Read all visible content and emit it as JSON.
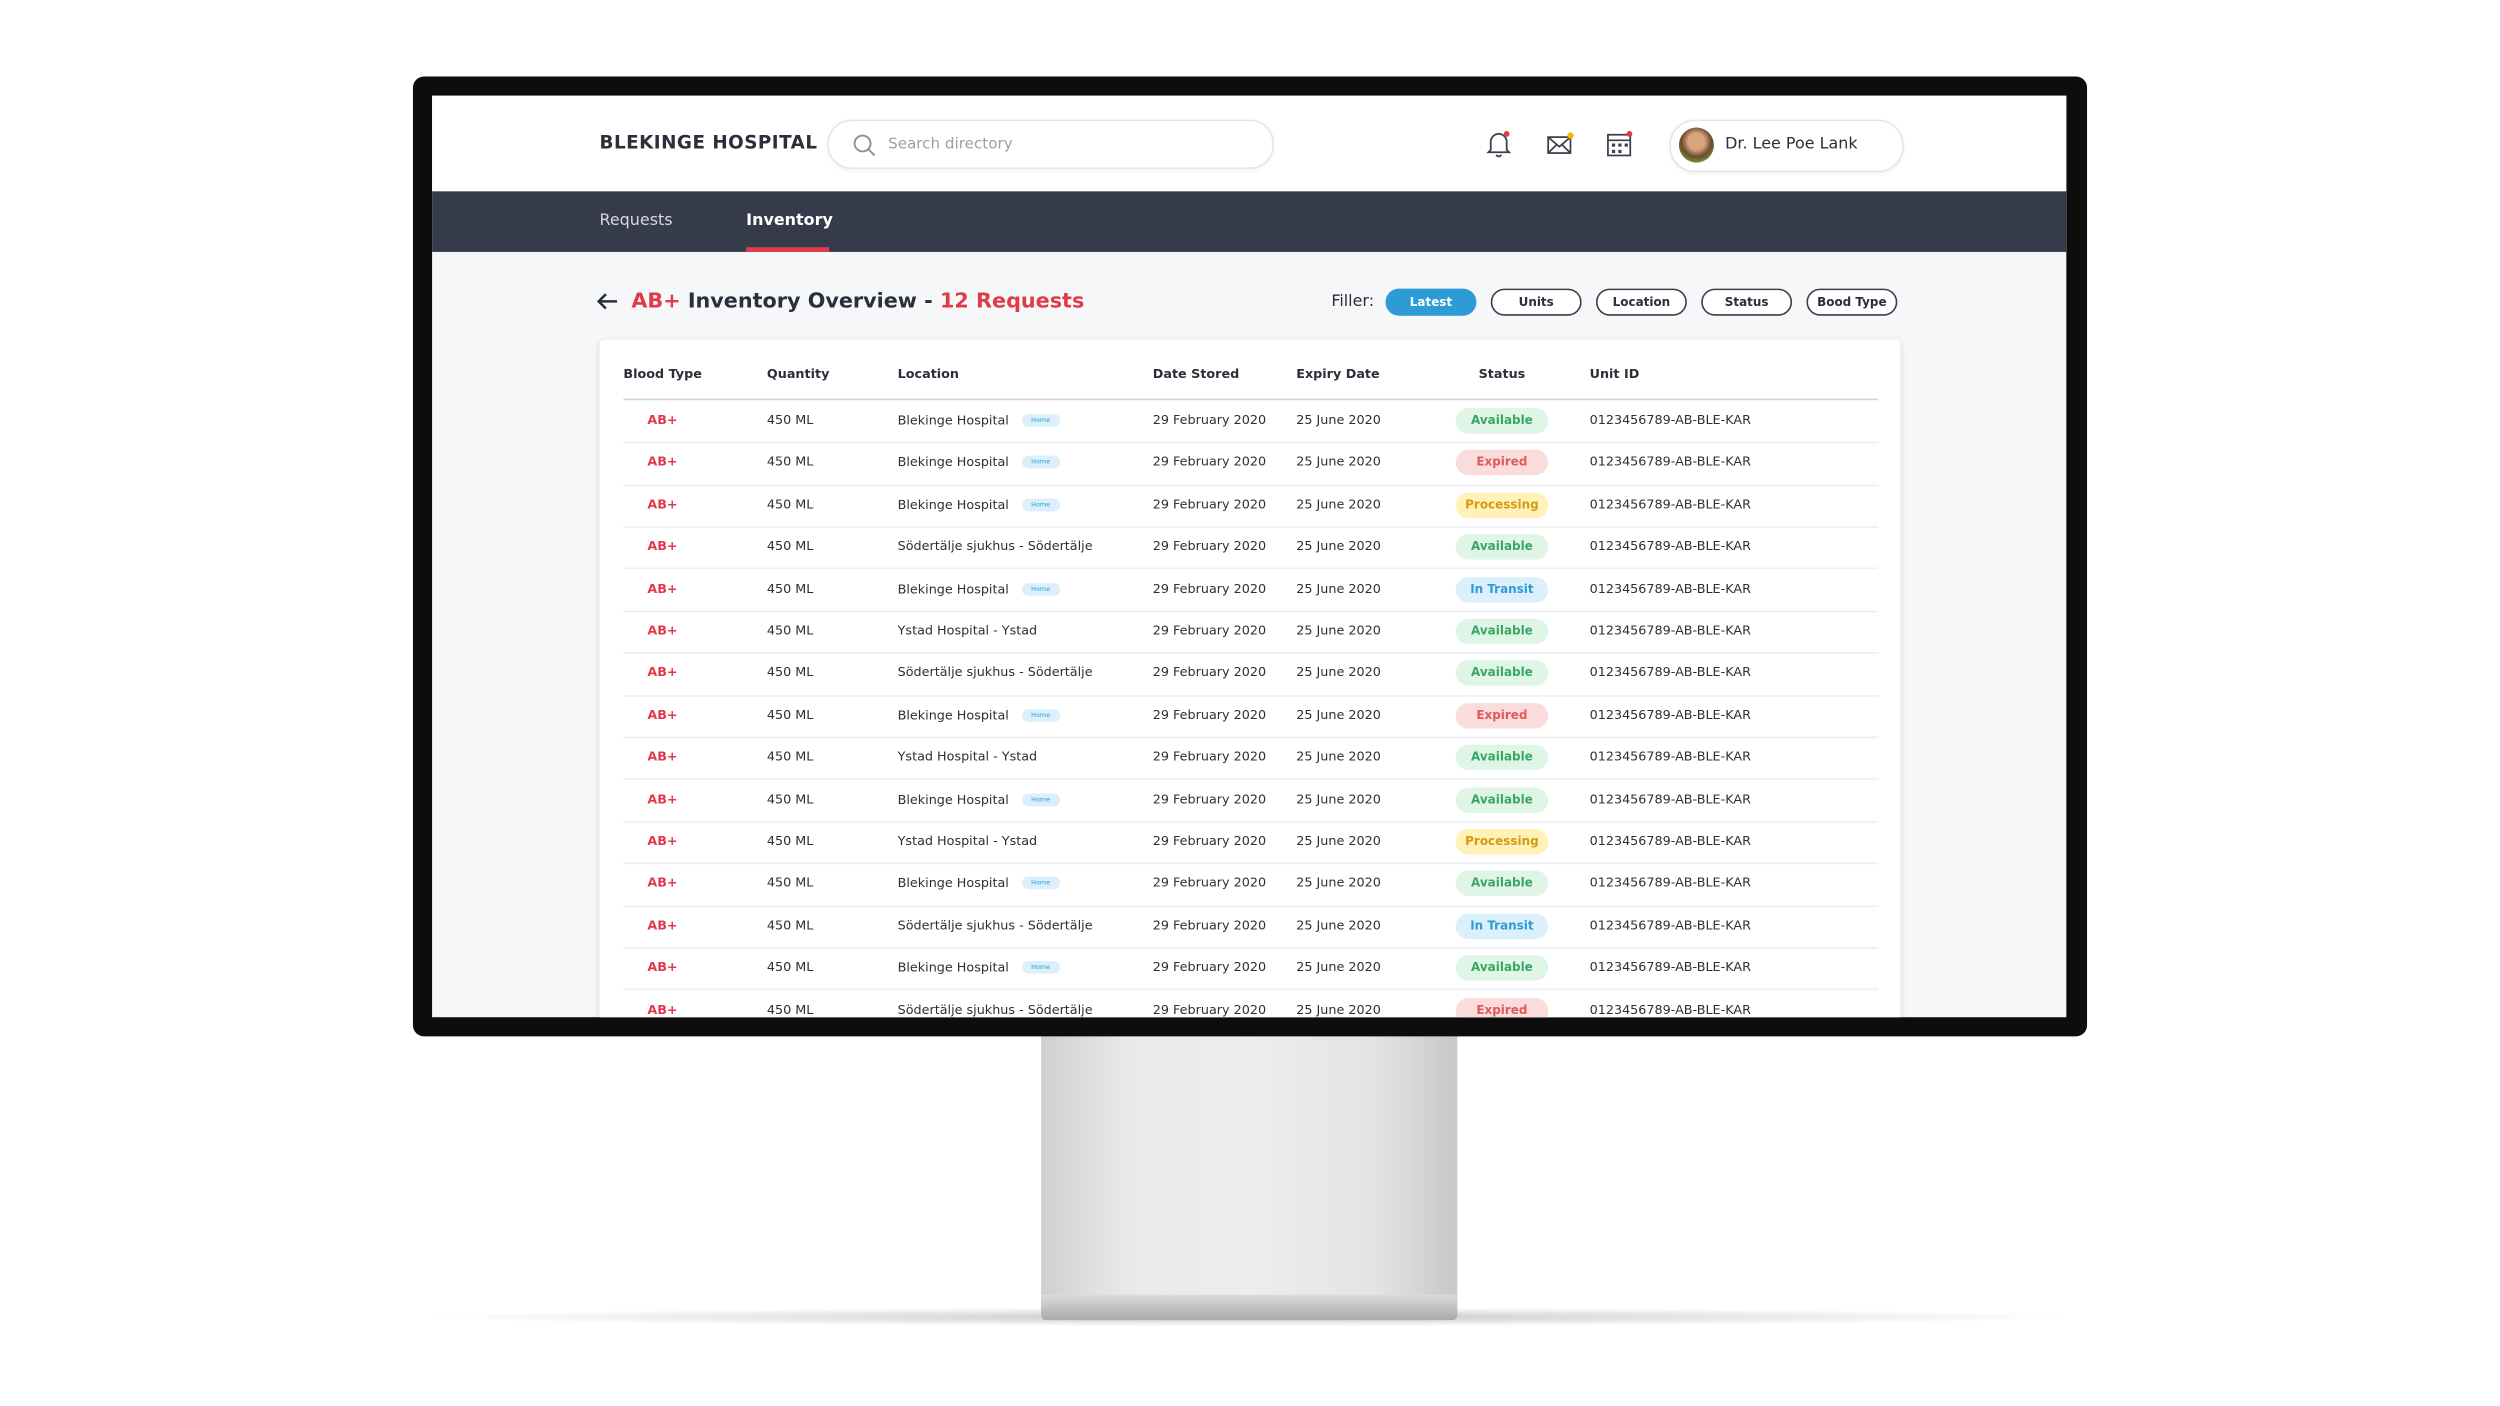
{
  "header": {
    "title": "BLEKINGE HOSPITAL",
    "search_placeholder": "Search directory",
    "user_name": "Dr. Lee Poe Lank"
  },
  "nav": {
    "tabs": [
      "Requests",
      "Inventory"
    ]
  },
  "overview": {
    "blood_type": "AB+",
    "title": " Inventory Overview - ",
    "count": "12 Requests",
    "filter_label": "Filler:",
    "filters": [
      "Latest",
      "Units",
      "Location",
      "Status",
      "Bood Type"
    ]
  },
  "table": {
    "columns": [
      "Blood Type",
      "Quantity",
      "Location",
      "Date Stored",
      "Expiry Date",
      "Status",
      "Unit ID"
    ],
    "status_colors": {
      "Available": {
        "bg": "#dff5e6",
        "fg": "#3aa565"
      },
      "Expired": {
        "bg": "#fbdcdc",
        "fg": "#e05a5a"
      },
      "Processing": {
        "bg": "#fff1b8",
        "fg": "#d49b12"
      },
      "In Transit": {
        "bg": "#dcf0fb",
        "fg": "#2d9bd6"
      }
    },
    "rows": [
      {
        "blood_type": "AB+",
        "quantity": "450 ML",
        "location": "Blekinge Hospital",
        "tag": "Home",
        "date_stored": "29 February 2020",
        "expiry_date": "25 June 2020",
        "status": "Available",
        "unit_id": "0123456789-AB-BLE-KAR"
      },
      {
        "blood_type": "AB+",
        "quantity": "450 ML",
        "location": "Blekinge Hospital",
        "tag": "Home",
        "date_stored": "29 February 2020",
        "expiry_date": "25 June 2020",
        "status": "Expired",
        "unit_id": "0123456789-AB-BLE-KAR"
      },
      {
        "blood_type": "AB+",
        "quantity": "450 ML",
        "location": "Blekinge Hospital",
        "tag": "Home",
        "date_stored": "29 February 2020",
        "expiry_date": "25 June 2020",
        "status": "Processing",
        "unit_id": "0123456789-AB-BLE-KAR"
      },
      {
        "blood_type": "AB+",
        "quantity": "450 ML",
        "location": "Södertälje sjukhus - Södertälje",
        "date_stored": "29 February 2020",
        "expiry_date": "25 June 2020",
        "status": "Available",
        "unit_id": "0123456789-AB-BLE-KAR"
      },
      {
        "blood_type": "AB+",
        "quantity": "450 ML",
        "location": "Blekinge Hospital",
        "tag": "Home",
        "date_stored": "29 February 2020",
        "expiry_date": "25 June 2020",
        "status": "In Transit",
        "unit_id": "0123456789-AB-BLE-KAR"
      },
      {
        "blood_type": "AB+",
        "quantity": "450 ML",
        "location": "Ystad Hospital - Ystad",
        "date_stored": "29 February 2020",
        "expiry_date": "25 June 2020",
        "status": "Available",
        "unit_id": "0123456789-AB-BLE-KAR"
      },
      {
        "blood_type": "AB+",
        "quantity": "450 ML",
        "location": "Södertälje sjukhus - Södertälje",
        "date_stored": "29 February 2020",
        "expiry_date": "25 June 2020",
        "status": "Available",
        "unit_id": "0123456789-AB-BLE-KAR"
      },
      {
        "blood_type": "AB+",
        "quantity": "450 ML",
        "location": "Blekinge Hospital",
        "tag": "Home",
        "date_stored": "29 February 2020",
        "expiry_date": "25 June 2020",
        "status": "Expired",
        "unit_id": "0123456789-AB-BLE-KAR"
      },
      {
        "blood_type": "AB+",
        "quantity": "450 ML",
        "location": "Ystad Hospital - Ystad",
        "date_stored": "29 February 2020",
        "expiry_date": "25 June 2020",
        "status": "Available",
        "unit_id": "0123456789-AB-BLE-KAR"
      },
      {
        "blood_type": "AB+",
        "quantity": "450 ML",
        "location": "Blekinge Hospital",
        "tag": "Home",
        "date_stored": "29 February 2020",
        "expiry_date": "25 June 2020",
        "status": "Available",
        "unit_id": "0123456789-AB-BLE-KAR"
      },
      {
        "blood_type": "AB+",
        "quantity": "450 ML",
        "location": "Ystad Hospital - Ystad",
        "date_stored": "29 February 2020",
        "expiry_date": "25 June 2020",
        "status": "Processing",
        "unit_id": "0123456789-AB-BLE-KAR"
      },
      {
        "blood_type": "AB+",
        "quantity": "450 ML",
        "location": "Blekinge Hospital",
        "tag": "Home",
        "date_stored": "29 February 2020",
        "expiry_date": "25 June 2020",
        "status": "Available",
        "unit_id": "0123456789-AB-BLE-KAR"
      },
      {
        "blood_type": "AB+",
        "quantity": "450 ML",
        "location": "Södertälje sjukhus - Södertälje",
        "date_stored": "29 February 2020",
        "expiry_date": "25 June 2020",
        "status": "In Transit",
        "unit_id": "0123456789-AB-BLE-KAR"
      },
      {
        "blood_type": "AB+",
        "quantity": "450 ML",
        "location": "Blekinge Hospital",
        "tag": "Home",
        "date_stored": "29 February 2020",
        "expiry_date": "25 June 2020",
        "status": "Available",
        "unit_id": "0123456789-AB-BLE-KAR"
      },
      {
        "blood_type": "AB+",
        "quantity": "450 ML",
        "location": "Södertälje sjukhus - Södertälje",
        "date_stored": "29 February 2020",
        "expiry_date": "25 June 2020",
        "status": "Expired",
        "unit_id": "0123456789-AB-BLE-KAR"
      }
    ]
  }
}
